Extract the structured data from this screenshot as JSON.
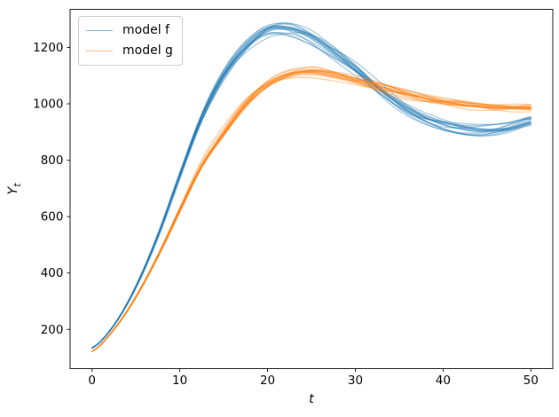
{
  "figure": {
    "background": "#ffffff",
    "ylabel_base": "Y",
    "ylabel_sub": "t"
  },
  "chart_data": {
    "type": "line",
    "title": "",
    "xlabel": "t",
    "ylabel": "Y_t",
    "x": [
      0,
      2.5,
      5,
      7.5,
      10,
      12.5,
      15,
      17.5,
      20,
      22.5,
      25,
      27.5,
      30,
      32.5,
      35,
      37.5,
      40,
      42.5,
      45,
      47.5,
      50
    ],
    "series": [
      {
        "name": "model f",
        "color": "#1f77b4",
        "values": [
          134,
          215,
          350,
          530,
          745,
          950,
          1100,
          1200,
          1258,
          1264,
          1238,
          1186,
          1125,
          1055,
          995,
          950,
          922,
          908,
          905,
          915,
          938
        ],
        "ensemble_lines": 16,
        "spread_pct": 2.2
      },
      {
        "name": "model g",
        "color": "#ff7f0e",
        "values": [
          122,
          200,
          315,
          460,
          625,
          785,
          900,
          1000,
          1068,
          1103,
          1112,
          1102,
          1083,
          1060,
          1038,
          1020,
          1006,
          997,
          991,
          988,
          988
        ],
        "ensemble_lines": 16,
        "spread_pct": 1.8
      }
    ],
    "x_ticks": [
      0,
      10,
      20,
      30,
      40,
      50
    ],
    "y_ticks": [
      200,
      400,
      600,
      800,
      1000,
      1200
    ],
    "xlim": [
      -2.5,
      52.5
    ],
    "ylim": [
      61,
      1335
    ],
    "grid": false,
    "legend_position": "upper left",
    "line_alpha": 0.4,
    "notes": "Each model shows an ensemble of overlapping simulated trajectories forming a band"
  }
}
